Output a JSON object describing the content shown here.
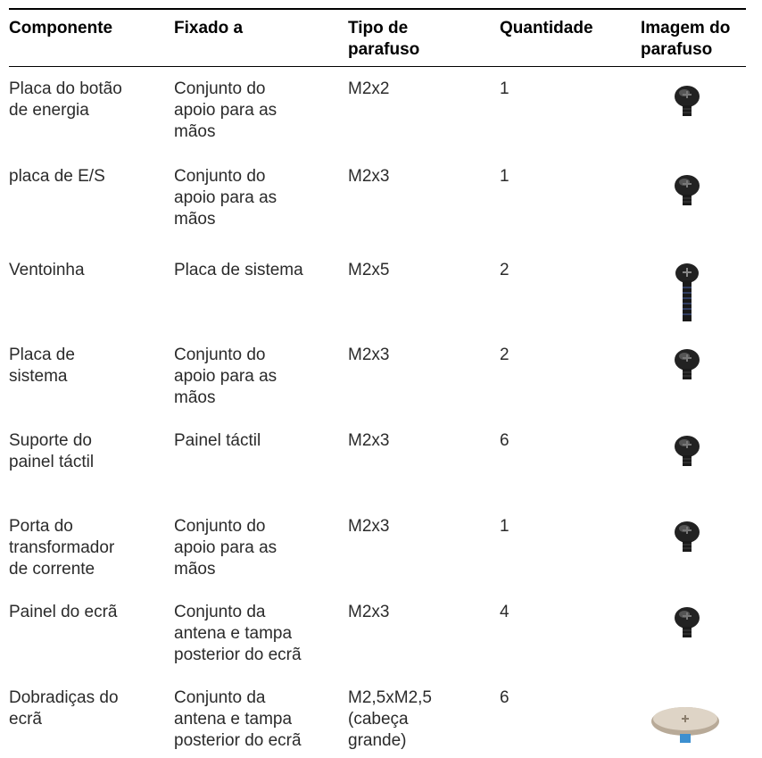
{
  "table": {
    "header": [
      "Componente",
      "Fixado a",
      "Tipo de\nparafuso",
      "Quantidade",
      "Imagem do\nparafuso"
    ],
    "rows": [
      [
        "Placa do botão\nde energia",
        "Conjunto do\napoio para as\nmãos",
        "M2x2",
        "1"
      ],
      [
        "placa de E/S",
        "Conjunto do\napoio para as\nmãos",
        "M2x3",
        "1"
      ],
      [
        "Ventoinha",
        "Placa de sistema",
        "M2x5",
        "2"
      ],
      [
        "Placa de\nsistema",
        "Conjunto do\napoio para as\nmãos",
        "M2x3",
        "2"
      ],
      [
        "Suporte do\npainel táctil",
        "Painel táctil",
        "M2x3",
        "6"
      ],
      [
        "Porta do\ntransformador\nde corrente",
        "Conjunto do\napoio para as\nmãos",
        "M2x3",
        "1"
      ],
      [
        "Painel do ecrã",
        "Conjunto da\nantena e tampa\nposterior do ecrã",
        "M2x3",
        "4"
      ],
      [
        "Dobradiças do\necrã",
        "Conjunto da\nantena e tampa\nposterior do ecrã",
        "M2,5xM2,5\n(cabeça\ngrande)",
        "6"
      ]
    ]
  }
}
